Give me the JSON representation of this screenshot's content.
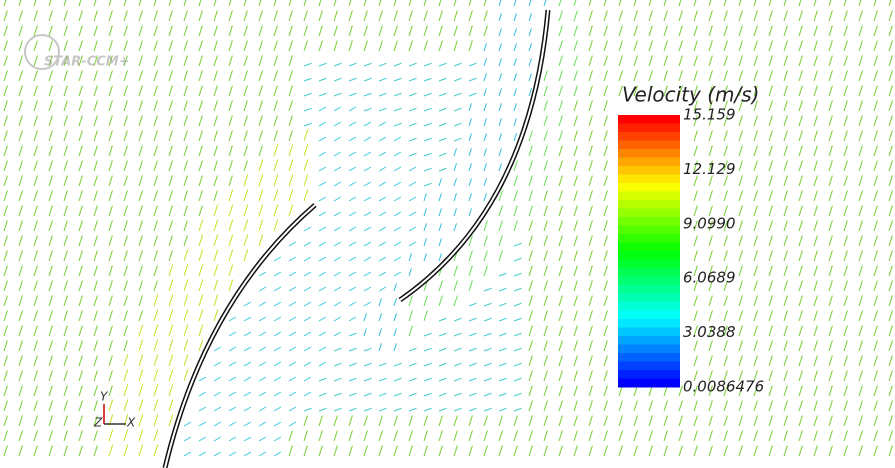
{
  "logo": "STAR-CCM+",
  "legend": {
    "title": "Velocity (m/s)",
    "labels": [
      "15.159",
      "12.129",
      "9.0990",
      "6.0689",
      "3.0388",
      "0.0086476"
    ]
  },
  "triad": {
    "y": "Y",
    "z": "Z",
    "x": "X"
  }
}
